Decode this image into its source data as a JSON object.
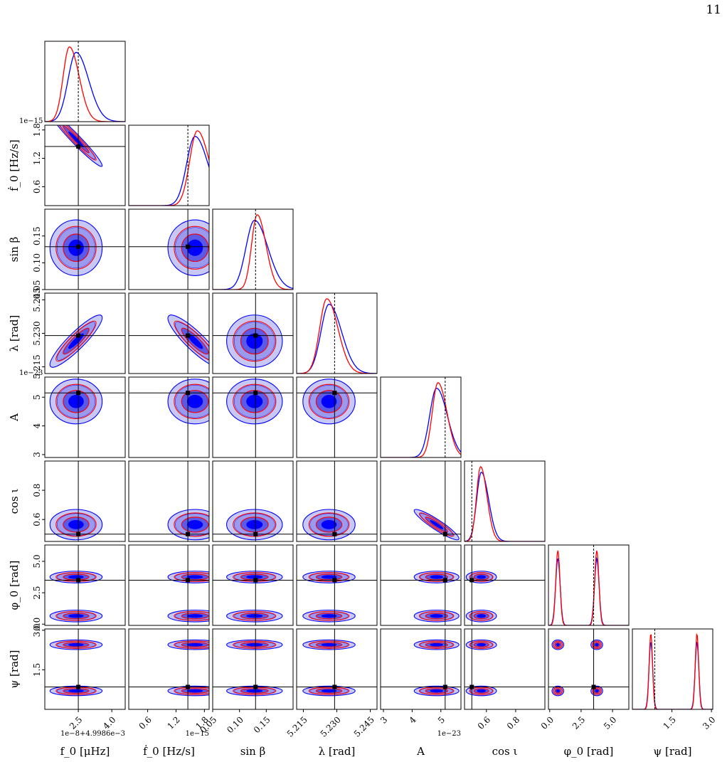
{
  "page": {
    "number": "11"
  },
  "chart_data": {
    "type": "corner",
    "title": "",
    "series": [
      {
        "name": "",
        "color": "#0000ff",
        "fill": "filled contours"
      },
      {
        "name": "",
        "color": "#ff0000",
        "fill": "contour lines"
      }
    ],
    "truth_line_color": "#000000",
    "parameters": [
      {
        "key": "f0",
        "label": "f_0 [μHz]",
        "range": [
          1.0,
          4.6
        ],
        "truth": 2.5,
        "ticks": [
          2.5,
          4.0
        ],
        "tick_labels": [
          "2.5",
          "4.0"
        ],
        "offset_text": "1e−8+4.9986e−3",
        "mean": 2.4,
        "sd": 0.45,
        "red_mean": 2.1,
        "red_sd": 0.35
      },
      {
        "key": "fdot",
        "label": "ḟ_0 [Hz/s]",
        "range": [
          0.2,
          1.9
        ],
        "truth": 1.45,
        "ticks": [
          0.6,
          1.2,
          1.8
        ],
        "tick_labels": [
          "0.6",
          "1.2",
          "1.8"
        ],
        "offset_text": "1e−15",
        "mean": 1.6,
        "sd": 0.22,
        "red_mean": 1.65,
        "red_sd": 0.2
      },
      {
        "key": "sinb",
        "label": "sin β",
        "range": [
          0.05,
          0.2
        ],
        "truth": 0.13,
        "ticks": [
          0.05,
          0.1,
          0.15
        ],
        "tick_labels": [
          "0.05",
          "0.10",
          "0.15"
        ],
        "offset_text": "",
        "mean": 0.128,
        "sd": 0.02,
        "red_mean": 0.133,
        "red_sd": 0.013
      },
      {
        "key": "lambda",
        "label": "λ [rad]",
        "range": [
          5.212,
          5.248
        ],
        "truth": 5.229,
        "ticks": [
          5.215,
          5.23,
          5.245
        ],
        "tick_labels": [
          "5.215",
          "5.230",
          "5.245"
        ],
        "offset_text": "",
        "mean": 5.2265,
        "sd": 0.0045,
        "red_mean": 5.2255,
        "red_sd": 0.004
      },
      {
        "key": "A",
        "label": "A",
        "range": [
          2.9,
          5.7
        ],
        "truth": 5.15,
        "ticks": [
          3,
          4,
          5
        ],
        "tick_labels": [
          "3",
          "4",
          "5"
        ],
        "offset_text": "1e−23",
        "mean": 4.85,
        "sd": 0.3,
        "red_mean": 4.9,
        "red_sd": 0.25
      },
      {
        "key": "cosi",
        "label": "cos ι",
        "range": [
          0.45,
          1.0
        ],
        "truth": 0.5,
        "ticks": [
          0.6,
          0.8
        ],
        "tick_labels": [
          "0.6",
          "0.8"
        ],
        "offset_text": "",
        "mean": 0.565,
        "sd": 0.04,
        "red_mean": 0.56,
        "red_sd": 0.035
      },
      {
        "key": "phi0",
        "label": "φ_0 [rad]",
        "range": [
          -0.1,
          6.3
        ],
        "truth": 3.5,
        "ticks": [
          0.0,
          2.5,
          5.0
        ],
        "tick_labels": [
          "0.0",
          "2.5",
          "5.0"
        ],
        "offset_text": "",
        "modes": [
          0.65,
          3.75
        ],
        "mode_sd": 0.18
      },
      {
        "key": "psi",
        "label": "ψ [rad]",
        "range": [
          0.0,
          3.05
        ],
        "truth": 0.85,
        "ticks": [
          1.5,
          3.0
        ],
        "tick_labels": [
          "1.5",
          "3.0"
        ],
        "offset_text": "",
        "modes": [
          0.7,
          2.45
        ],
        "mode_sd": 0.07
      }
    ],
    "correlations": {
      "f0|fdot": -0.97,
      "f0|lambda": 0.9,
      "fdot|lambda": -0.88,
      "A|cosi": -0.92
    }
  }
}
